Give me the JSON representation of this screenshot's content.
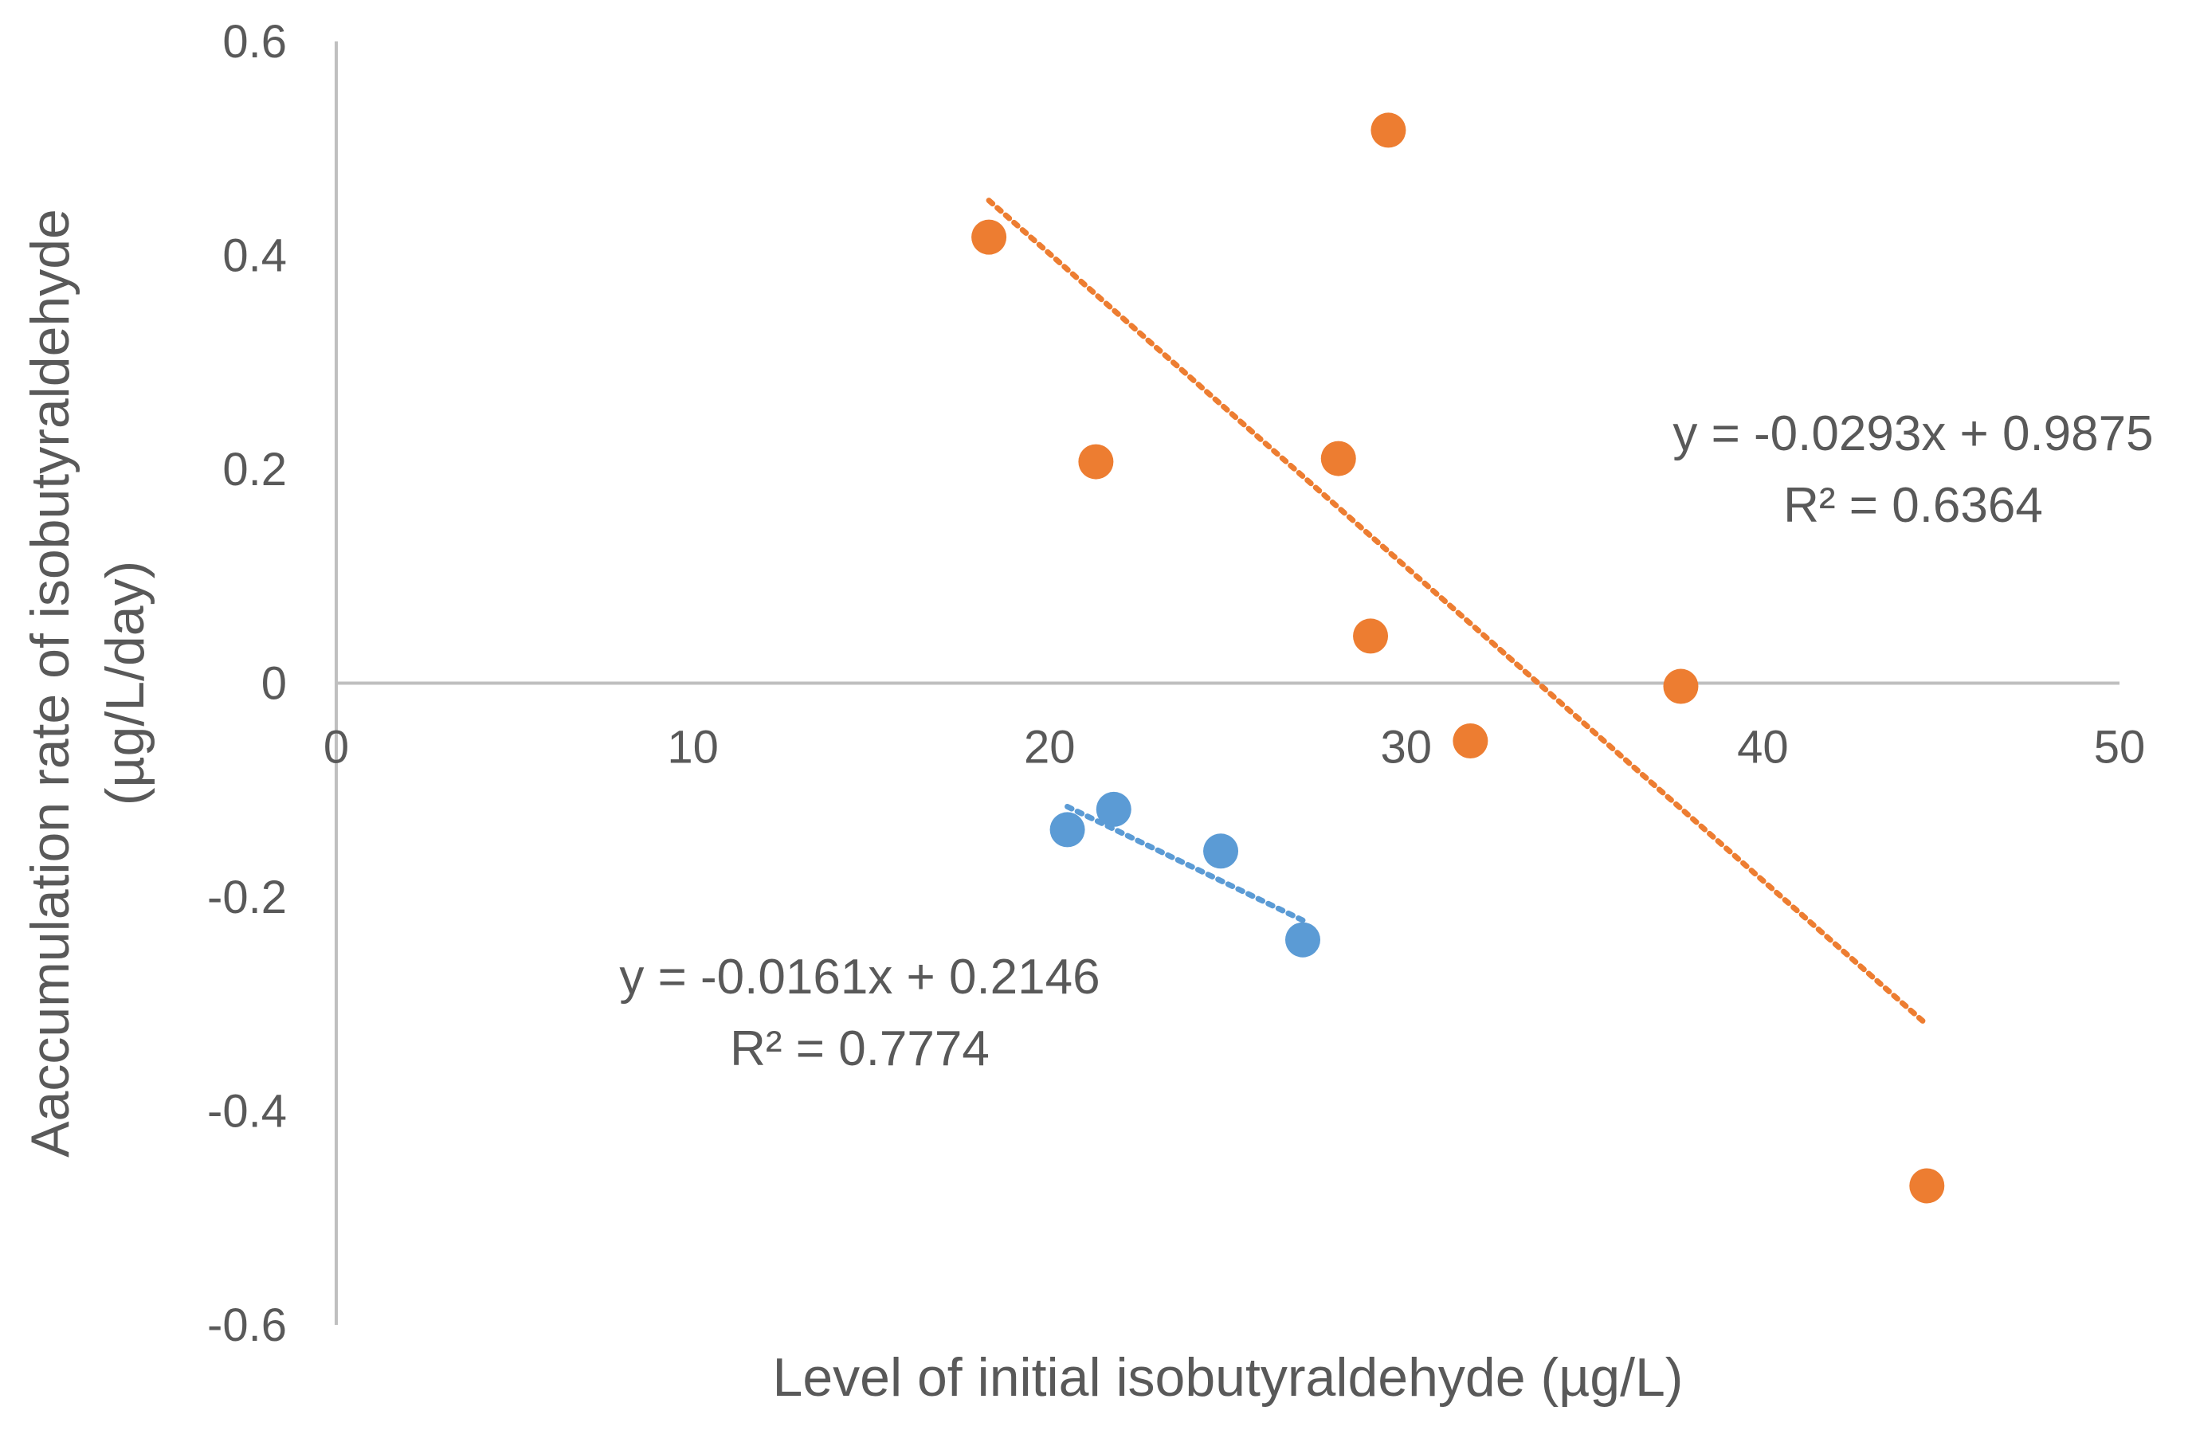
{
  "chart_data": {
    "type": "scatter",
    "title": "",
    "xlabel": "Level of initial isobutyraldehyde (µg/L)",
    "ylabel_line1": "Aaccumulation rate of isobutyraldehyde",
    "ylabel_line2": "(µg/L/day)",
    "xlim": [
      0,
      50
    ],
    "ylim": [
      -0.6,
      0.6
    ],
    "x_ticks": [
      0,
      10,
      20,
      30,
      40,
      50
    ],
    "y_ticks": [
      0.6,
      0.4,
      0.2,
      0,
      -0.2,
      -0.4,
      -0.6
    ],
    "x_tick_labels": [
      "0",
      "10",
      "20",
      "30",
      "40",
      "50"
    ],
    "y_tick_labels": [
      "0.6",
      "0.4",
      "0.2",
      "0",
      "-0.2",
      "-0.4",
      "-0.6"
    ],
    "grid": false,
    "legend": "none",
    "series": [
      {
        "color": "#ED7D31",
        "points": [
          {
            "x": 18.3,
            "y": 0.417
          },
          {
            "x": 21.3,
            "y": 0.207
          },
          {
            "x": 28.1,
            "y": 0.21
          },
          {
            "x": 29.5,
            "y": 0.517
          },
          {
            "x": 29.0,
            "y": 0.044
          },
          {
            "x": 31.8,
            "y": -0.054
          },
          {
            "x": 37.7,
            "y": -0.003
          },
          {
            "x": 44.6,
            "y": -0.47
          }
        ],
        "trendline": {
          "slope": -0.0293,
          "intercept": 0.9875,
          "x_range": [
            18.3,
            44.6
          ],
          "equation": "y = -0.0293x + 0.9875",
          "r2": "R² = 0.6364"
        }
      },
      {
        "color": "#5B9BD5",
        "points": [
          {
            "x": 20.5,
            "y": -0.137
          },
          {
            "x": 21.8,
            "y": -0.118
          },
          {
            "x": 24.8,
            "y": -0.157
          },
          {
            "x": 27.1,
            "y": -0.24
          }
        ],
        "trendline": {
          "slope": -0.0161,
          "intercept": 0.2146,
          "x_range": [
            20.5,
            27.1
          ],
          "equation": "y = -0.0161x + 0.2146",
          "r2": "R² = 0.7774"
        }
      }
    ]
  }
}
